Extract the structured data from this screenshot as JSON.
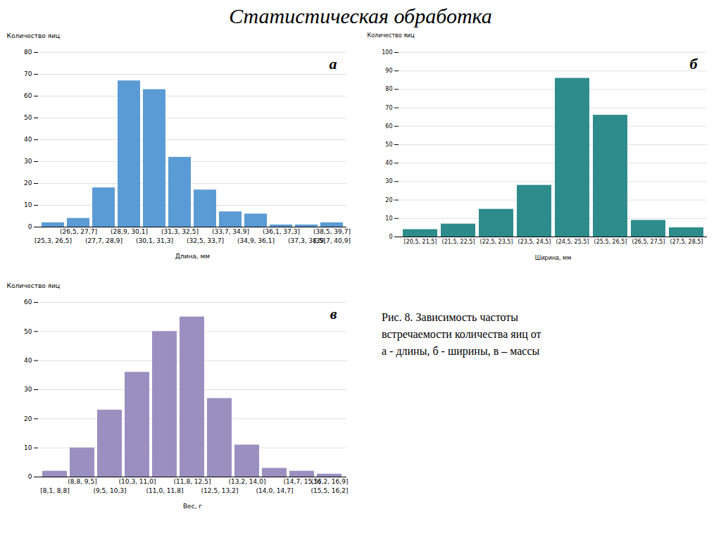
{
  "title": "Статистическая обработка",
  "caption": "Рис. 8. Зависимость частоты\nвстречаемости количества яиц от\nа - длины, б - ширины, в – массы",
  "chart_data": [
    {
      "type": "bar",
      "title": "а",
      "categories": [
        "[25,3, 26,5]",
        "(26,5, 27,7]",
        "(27,7, 28,9]",
        "(28,9, 30,1]",
        "(30,1, 31,3]",
        "(31,3, 32,5]",
        "(32,5, 33,7]",
        "(33,7, 34,9]",
        "(34,9, 36,1]",
        "(36,1, 37,3]",
        "(37,3, 38,5]",
        "(38,5, 39,7]"
      ],
      "annotations": [
        "(39,7, 40,9]"
      ],
      "values": [
        2,
        4,
        18,
        67,
        63,
        32,
        17,
        7,
        6,
        1,
        1,
        2
      ],
      "color": "#5b9bd5",
      "x_label": "Длина, мм",
      "y_label": "Количество яиц",
      "ylim": [
        0,
        80
      ],
      "yticks": [
        0,
        10,
        20,
        30,
        40,
        50,
        60,
        70,
        80
      ],
      "grid": true
    },
    {
      "type": "bar",
      "title": "б",
      "categories": [
        "[20,5, 21,5]",
        "(21,5, 22,5]",
        "(22,5, 23,5]",
        "(23,5, 24,5]",
        "(24,5, 25,5]",
        "(25,5, 26,5]",
        "(26,5, 27,5]",
        "(27,5, 28,5]"
      ],
      "values": [
        4,
        7,
        15,
        28,
        86,
        66,
        9,
        5
      ],
      "color": "#2e8b8b",
      "x_label": "Ширина, мм",
      "y_label": "Количество яиц",
      "ylim": [
        0,
        100
      ],
      "yticks": [
        0,
        10,
        20,
        30,
        40,
        50,
        60,
        70,
        80,
        90,
        100
      ],
      "grid": true
    },
    {
      "type": "bar",
      "title": "в",
      "categories": [
        "[8,1, 8,8]",
        "(8,8, 9,5]",
        "(9,5, 10,3]",
        "(10,3, 11,0]",
        "(11,0, 11,8]",
        "(11,8, 12,5]",
        "(12,5, 13,2]",
        "(13,2, 14,0]",
        "(14,0, 14,7]",
        "(14,7, 15,5]",
        "(15,5, 16,2]"
      ],
      "annotations": [
        "(16,2, 16,9]"
      ],
      "values": [
        2,
        10,
        23,
        36,
        50,
        55,
        27,
        11,
        3,
        2,
        1
      ],
      "color": "#9b8fc0",
      "x_label": "Вес, г",
      "y_label": "Количество яиц",
      "ylim": [
        0,
        60
      ],
      "yticks": [
        0,
        10,
        20,
        30,
        40,
        50,
        60
      ],
      "grid": true
    }
  ]
}
